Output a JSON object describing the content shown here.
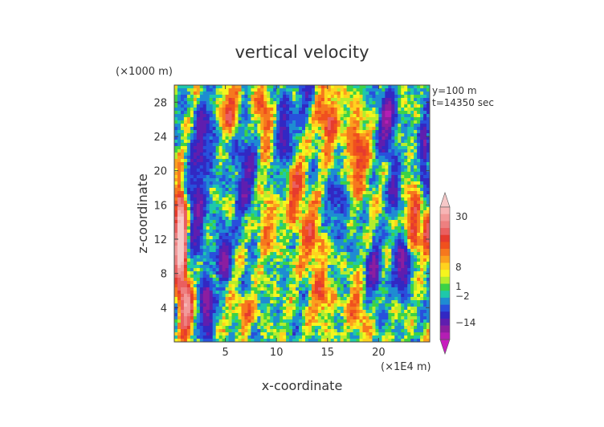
{
  "chart_data": {
    "type": "heatmap",
    "title": "vertical velocity",
    "xlabel": "x-coordinate",
    "ylabel": "z-coordinate",
    "x_unit": "(×1E4 m)",
    "y_unit": "(×1000 m)",
    "info_lines": [
      "y=100 m",
      "t=14350 sec"
    ],
    "xlim": [
      0,
      25
    ],
    "ylim": [
      0,
      30
    ],
    "x_ticks": [
      5,
      10,
      15,
      20
    ],
    "y_ticks": [
      4,
      8,
      12,
      16,
      20,
      24,
      28
    ],
    "colorbar": {
      "labels": [
        30,
        8,
        1,
        -2,
        -14
      ],
      "colors": [
        "#f6c8c8",
        "#f7b5b5",
        "#f29a9a",
        "#ee8080",
        "#ea5f5f",
        "#e63b2e",
        "#f0501e",
        "#f6781e",
        "#fba01e",
        "#ffd21e",
        "#f5f51e",
        "#b4ed2d",
        "#3cd246",
        "#1ec8aa",
        "#1e8cd2",
        "#2850dc",
        "#3228c3",
        "#5f1eaf",
        "#8c1ea0",
        "#b41eb4",
        "#c81ebe"
      ]
    },
    "field_summary": "vertical velocity w(x,z) in m/s with dominant values between -2 and 8; strong negative (blue) and positive (red) elongated vertical plumes; maximum near x≈0.5, z≈10–14 (pink, ≥30)"
  }
}
